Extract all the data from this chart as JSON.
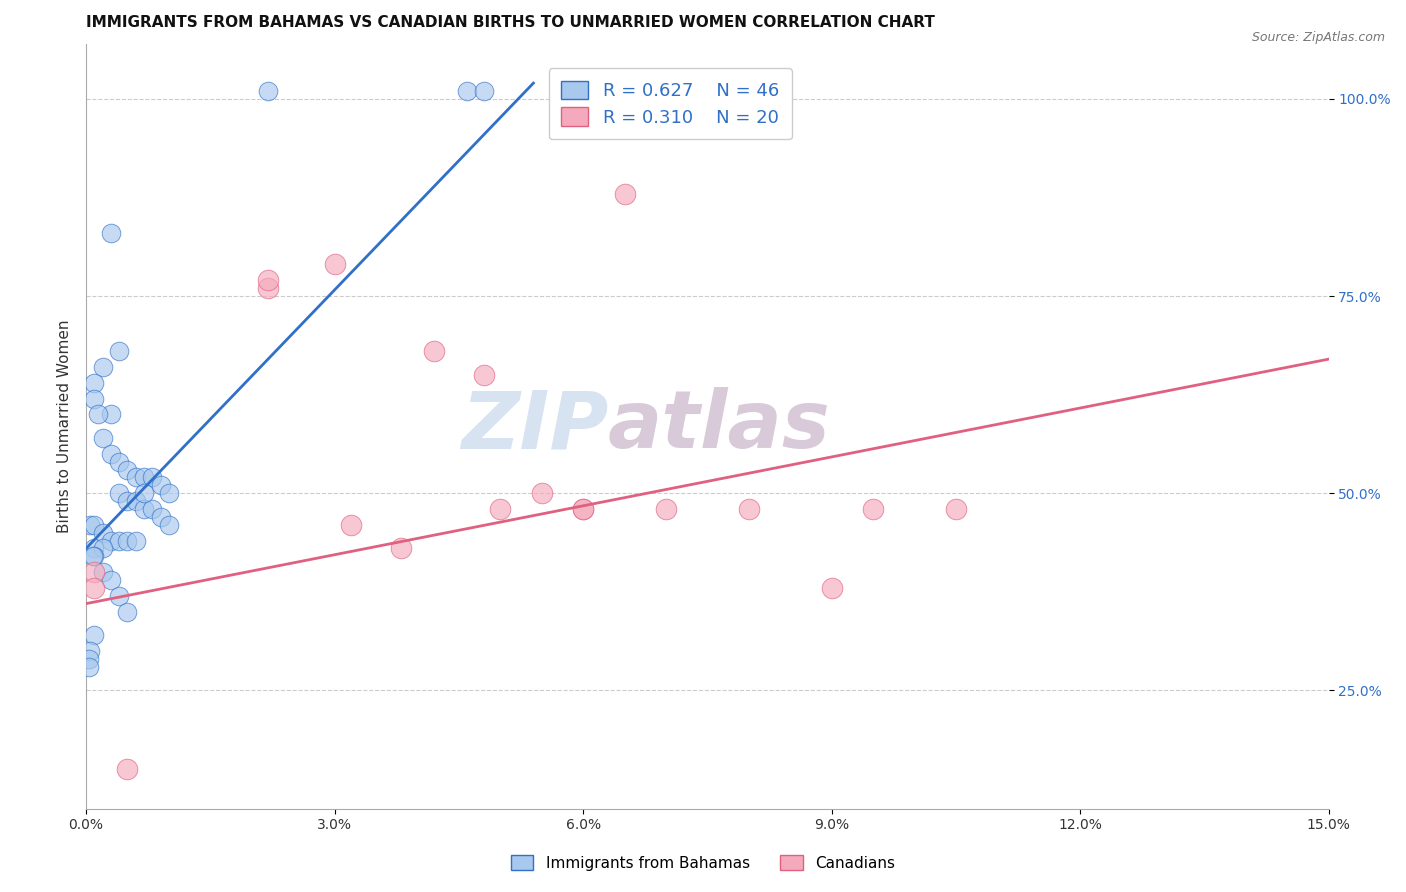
{
  "title": "IMMIGRANTS FROM BAHAMAS VS CANADIAN BIRTHS TO UNMARRIED WOMEN CORRELATION CHART",
  "source": "Source: ZipAtlas.com",
  "ylabel": "Births to Unmarried Women",
  "xlim": [
    0.0,
    0.15
  ],
  "ylim": [
    0.1,
    1.07
  ],
  "xtick_labels": [
    "0.0%",
    "3.0%",
    "6.0%",
    "9.0%",
    "12.0%",
    "15.0%"
  ],
  "xtick_vals": [
    0.0,
    0.03,
    0.06,
    0.09,
    0.12,
    0.15
  ],
  "ytick_labels": [
    "25.0%",
    "50.0%",
    "75.0%",
    "100.0%"
  ],
  "ytick_vals": [
    0.25,
    0.5,
    0.75,
    1.0
  ],
  "blue_scatter_x": [
    0.022,
    0.046,
    0.003,
    0.004,
    0.002,
    0.001,
    0.001,
    0.003,
    0.0015,
    0.002,
    0.003,
    0.004,
    0.005,
    0.006,
    0.007,
    0.008,
    0.009,
    0.01,
    0.004,
    0.005,
    0.006,
    0.007,
    0.008,
    0.009,
    0.01,
    0.0005,
    0.001,
    0.002,
    0.003,
    0.004,
    0.005,
    0.006,
    0.001,
    0.002,
    0.001,
    0.0008,
    0.002,
    0.003,
    0.004,
    0.005,
    0.007,
    0.001,
    0.0005,
    0.0003,
    0.0004,
    0.048
  ],
  "blue_scatter_y": [
    1.01,
    1.01,
    0.83,
    0.68,
    0.66,
    0.64,
    0.62,
    0.6,
    0.6,
    0.57,
    0.55,
    0.54,
    0.53,
    0.52,
    0.52,
    0.52,
    0.51,
    0.5,
    0.5,
    0.49,
    0.49,
    0.48,
    0.48,
    0.47,
    0.46,
    0.46,
    0.46,
    0.45,
    0.44,
    0.44,
    0.44,
    0.44,
    0.43,
    0.43,
    0.42,
    0.42,
    0.4,
    0.39,
    0.37,
    0.35,
    0.5,
    0.32,
    0.3,
    0.29,
    0.28,
    1.01
  ],
  "pink_scatter_x": [
    0.001,
    0.001,
    0.022,
    0.022,
    0.03,
    0.038,
    0.042,
    0.048,
    0.05,
    0.06,
    0.065,
    0.07,
    0.08,
    0.09,
    0.055,
    0.095,
    0.105,
    0.032,
    0.06,
    0.005
  ],
  "pink_scatter_y": [
    0.4,
    0.38,
    0.76,
    0.77,
    0.79,
    0.43,
    0.68,
    0.65,
    0.48,
    0.48,
    0.88,
    0.48,
    0.48,
    0.38,
    0.5,
    0.48,
    0.48,
    0.46,
    0.48,
    0.15
  ],
  "blue_line_x": [
    0.0,
    0.054
  ],
  "blue_line_y": [
    0.43,
    1.02
  ],
  "pink_line_x": [
    0.0,
    0.15
  ],
  "pink_line_y": [
    0.36,
    0.67
  ],
  "blue_color": "#A8C8EE",
  "pink_color": "#F4AABC",
  "blue_line_color": "#3070C8",
  "pink_line_color": "#E06080",
  "R_blue": "R = 0.627",
  "N_blue": "N = 46",
  "R_pink": "R = 0.310",
  "N_pink": "N = 20",
  "legend_label_blue": "Immigrants from Bahamas",
  "legend_label_pink": "Canadians",
  "watermark_text": "ZIP",
  "watermark_text2": "atlas",
  "grid_color": "#CCCCCC",
  "background_color": "#FFFFFF",
  "title_fontsize": 11,
  "axis_label_fontsize": 11,
  "tick_fontsize": 10
}
